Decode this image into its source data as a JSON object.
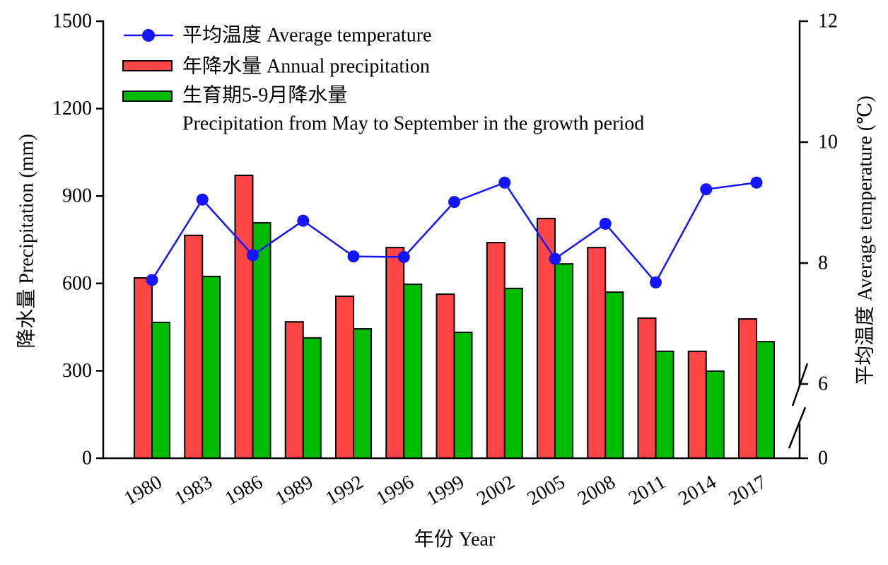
{
  "chart_data": {
    "type": "bar",
    "xlabel": "年份 Year",
    "ylabel": "降水量 Precipitation (mm)",
    "y2label": "平均温度 Average temperature (℃)",
    "categories": [
      "1980",
      "1983",
      "1986",
      "1989",
      "1992",
      "1996",
      "1999",
      "2002",
      "2005",
      "2008",
      "2011",
      "2014",
      "2017"
    ],
    "ylim": [
      0,
      1500
    ],
    "yticks": [
      0,
      300,
      600,
      900,
      1200,
      1500
    ],
    "y2lim": [
      0,
      12
    ],
    "y2ticks": [
      0,
      6,
      8,
      10,
      12
    ],
    "y2_break": [
      0,
      6
    ],
    "grid": false,
    "legend_position": "top-left",
    "series": [
      {
        "name": "平均温度 Average temperature",
        "type": "line",
        "marker": "circle",
        "axis": "right",
        "color": "#1414ff",
        "values": [
          7.72,
          9.05,
          8.13,
          8.7,
          8.11,
          8.1,
          9.01,
          9.33,
          8.07,
          8.65,
          7.68,
          9.22,
          9.33
        ]
      },
      {
        "name": "年降水量 Annual precipitation",
        "type": "bar",
        "axis": "left",
        "color": "#ff4545",
        "values": [
          619,
          765,
          971,
          468,
          556,
          723,
          563,
          740,
          823,
          723,
          481,
          367,
          478
        ]
      },
      {
        "name": [
          "生育期5-9月降水量",
          "Precipitation from May to September in the growth period"
        ],
        "type": "bar",
        "axis": "left",
        "color": "#00bb00",
        "values": [
          466,
          624,
          808,
          413,
          444,
          597,
          432,
          583,
          667,
          570,
          367,
          299,
          400
        ]
      }
    ]
  }
}
